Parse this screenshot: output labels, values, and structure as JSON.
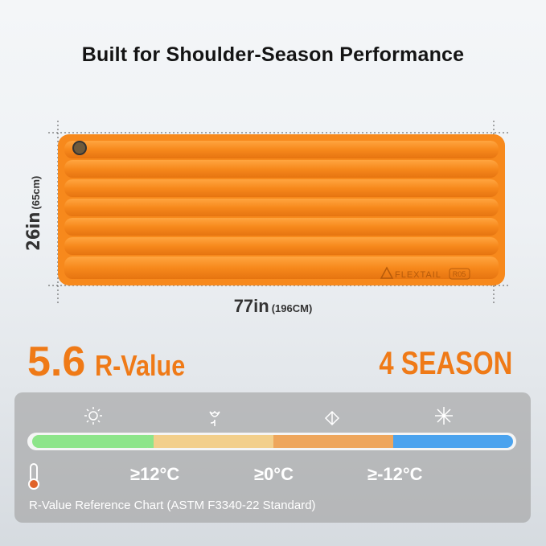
{
  "header": {
    "title": "Built for Shoulder-Season Performance"
  },
  "product": {
    "width": "26in",
    "width_metric": "(65cm)",
    "length": "77in",
    "length_metric": "(196CM)",
    "brand": "FLEXTAIL",
    "model": "R05"
  },
  "rating": {
    "r_value_number": "5.6",
    "r_value_label": "R-Value",
    "season": "4 SEASON"
  },
  "chart": {
    "temperatures": [
      "≥12°C",
      "≥0°C",
      "≥-12°C"
    ],
    "caption": "R-Value Reference Chart (ASTM F3340-22 Standard)"
  }
}
